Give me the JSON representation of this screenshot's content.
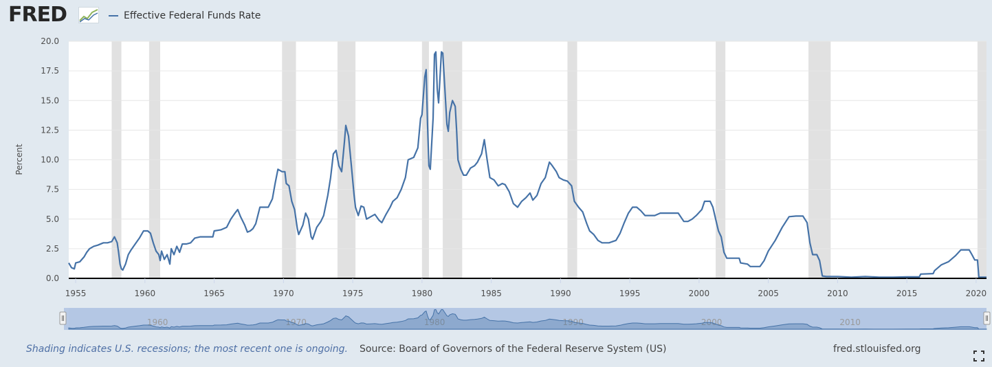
{
  "header": {
    "logo_text": "FRED",
    "legend_label": "Effective Federal Funds Rate",
    "series_color": "#4572a7"
  },
  "footer": {
    "recession_note": "Shading indicates U.S. recessions; the most recent one is ongoing.",
    "source": "Source: Board of Governors of the Federal Reserve System (US)",
    "site": "fred.stlouisfed.org"
  },
  "chart_data": {
    "type": "line",
    "title": "",
    "xlabel": "",
    "ylabel": "Percent",
    "xlim": [
      1954.5,
      2020.75
    ],
    "ylim": [
      0,
      20
    ],
    "y_ticks": [
      "0.0",
      "2.5",
      "5.0",
      "7.5",
      "10.0",
      "12.5",
      "15.0",
      "17.5",
      "20.0"
    ],
    "x_ticks": [
      "1955",
      "1960",
      "1965",
      "1970",
      "1975",
      "1980",
      "1985",
      "1990",
      "1995",
      "2000",
      "2005",
      "2010",
      "2015",
      "2020"
    ],
    "navigator_labels": [
      "1960",
      "1970",
      "1980",
      "1990",
      "2000",
      "2010"
    ],
    "grid": "horizontal",
    "recessions": [
      [
        1957.6,
        1958.3
      ],
      [
        1960.3,
        1961.1
      ],
      [
        1969.9,
        1970.9
      ],
      [
        1973.9,
        1975.2
      ],
      [
        1980.0,
        1980.5
      ],
      [
        1981.5,
        1982.9
      ],
      [
        1990.5,
        1991.2
      ],
      [
        2001.2,
        2001.9
      ],
      [
        2007.9,
        2009.5
      ],
      [
        2020.1,
        2020.75
      ]
    ],
    "series": [
      {
        "name": "Effective Federal Funds Rate",
        "color": "#4572a7",
        "points": [
          [
            1954.5,
            1.3
          ],
          [
            1954.7,
            0.9
          ],
          [
            1954.9,
            0.8
          ],
          [
            1955.0,
            1.3
          ],
          [
            1955.3,
            1.4
          ],
          [
            1955.6,
            1.8
          ],
          [
            1955.8,
            2.2
          ],
          [
            1956.0,
            2.5
          ],
          [
            1956.3,
            2.7
          ],
          [
            1956.6,
            2.8
          ],
          [
            1957.0,
            3.0
          ],
          [
            1957.3,
            3.0
          ],
          [
            1957.6,
            3.1
          ],
          [
            1957.8,
            3.5
          ],
          [
            1958.0,
            3.0
          ],
          [
            1958.1,
            2.2
          ],
          [
            1958.2,
            1.2
          ],
          [
            1958.3,
            0.8
          ],
          [
            1958.4,
            0.7
          ],
          [
            1958.6,
            1.2
          ],
          [
            1958.8,
            2.0
          ],
          [
            1959.0,
            2.4
          ],
          [
            1959.3,
            2.9
          ],
          [
            1959.6,
            3.4
          ],
          [
            1959.9,
            4.0
          ],
          [
            1960.2,
            4.0
          ],
          [
            1960.4,
            3.8
          ],
          [
            1960.6,
            3.0
          ],
          [
            1960.8,
            2.3
          ],
          [
            1961.0,
            2.0
          ],
          [
            1961.1,
            1.5
          ],
          [
            1961.2,
            2.3
          ],
          [
            1961.4,
            1.6
          ],
          [
            1961.6,
            2.0
          ],
          [
            1961.8,
            1.2
          ],
          [
            1961.9,
            2.5
          ],
          [
            1962.1,
            2.0
          ],
          [
            1962.3,
            2.7
          ],
          [
            1962.5,
            2.2
          ],
          [
            1962.7,
            2.9
          ],
          [
            1963.0,
            2.9
          ],
          [
            1963.3,
            3.0
          ],
          [
            1963.6,
            3.4
          ],
          [
            1964.0,
            3.5
          ],
          [
            1964.5,
            3.5
          ],
          [
            1964.9,
            3.5
          ],
          [
            1965.0,
            4.0
          ],
          [
            1965.5,
            4.1
          ],
          [
            1965.9,
            4.3
          ],
          [
            1966.2,
            5.0
          ],
          [
            1966.5,
            5.5
          ],
          [
            1966.7,
            5.8
          ],
          [
            1966.9,
            5.2
          ],
          [
            1967.2,
            4.5
          ],
          [
            1967.4,
            3.9
          ],
          [
            1967.6,
            4.0
          ],
          [
            1967.8,
            4.2
          ],
          [
            1968.0,
            4.6
          ],
          [
            1968.3,
            6.0
          ],
          [
            1968.6,
            6.0
          ],
          [
            1968.9,
            6.0
          ],
          [
            1969.2,
            6.7
          ],
          [
            1969.4,
            8.0
          ],
          [
            1969.6,
            9.2
          ],
          [
            1969.9,
            9.0
          ],
          [
            1970.1,
            9.0
          ],
          [
            1970.2,
            8.0
          ],
          [
            1970.4,
            7.8
          ],
          [
            1970.6,
            6.5
          ],
          [
            1970.8,
            5.8
          ],
          [
            1971.0,
            4.2
          ],
          [
            1971.1,
            3.7
          ],
          [
            1971.4,
            4.5
          ],
          [
            1971.6,
            5.5
          ],
          [
            1971.8,
            5.0
          ],
          [
            1972.0,
            3.5
          ],
          [
            1972.1,
            3.3
          ],
          [
            1972.4,
            4.3
          ],
          [
            1972.7,
            4.8
          ],
          [
            1972.9,
            5.3
          ],
          [
            1973.2,
            7.0
          ],
          [
            1973.4,
            8.5
          ],
          [
            1973.6,
            10.5
          ],
          [
            1973.8,
            10.8
          ],
          [
            1974.0,
            9.5
          ],
          [
            1974.2,
            9.0
          ],
          [
            1974.4,
            11.5
          ],
          [
            1974.5,
            12.9
          ],
          [
            1974.7,
            12.0
          ],
          [
            1974.9,
            9.5
          ],
          [
            1975.1,
            7.0
          ],
          [
            1975.2,
            6.0
          ],
          [
            1975.4,
            5.3
          ],
          [
            1975.6,
            6.1
          ],
          [
            1975.8,
            6.0
          ],
          [
            1976.0,
            5.0
          ],
          [
            1976.3,
            5.2
          ],
          [
            1976.6,
            5.4
          ],
          [
            1976.9,
            4.9
          ],
          [
            1977.1,
            4.7
          ],
          [
            1977.4,
            5.4
          ],
          [
            1977.7,
            6.0
          ],
          [
            1977.9,
            6.5
          ],
          [
            1978.2,
            6.8
          ],
          [
            1978.5,
            7.5
          ],
          [
            1978.8,
            8.5
          ],
          [
            1979.0,
            10.0
          ],
          [
            1979.4,
            10.2
          ],
          [
            1979.7,
            11.0
          ],
          [
            1979.9,
            13.5
          ],
          [
            1980.0,
            13.8
          ],
          [
            1980.2,
            17.0
          ],
          [
            1980.3,
            17.6
          ],
          [
            1980.4,
            13.0
          ],
          [
            1980.5,
            9.5
          ],
          [
            1980.6,
            9.2
          ],
          [
            1980.8,
            13.5
          ],
          [
            1980.9,
            18.9
          ],
          [
            1981.0,
            19.1
          ],
          [
            1981.1,
            16.0
          ],
          [
            1981.2,
            14.8
          ],
          [
            1981.4,
            19.1
          ],
          [
            1981.5,
            19.0
          ],
          [
            1981.7,
            15.0
          ],
          [
            1981.8,
            13.0
          ],
          [
            1981.9,
            12.4
          ],
          [
            1982.0,
            14.0
          ],
          [
            1982.2,
            15.0
          ],
          [
            1982.4,
            14.5
          ],
          [
            1982.5,
            12.5
          ],
          [
            1982.6,
            10.0
          ],
          [
            1982.8,
            9.2
          ],
          [
            1983.0,
            8.7
          ],
          [
            1983.2,
            8.7
          ],
          [
            1983.5,
            9.3
          ],
          [
            1983.8,
            9.5
          ],
          [
            1984.0,
            9.8
          ],
          [
            1984.3,
            10.5
          ],
          [
            1984.5,
            11.7
          ],
          [
            1984.7,
            10.0
          ],
          [
            1984.9,
            8.5
          ],
          [
            1985.2,
            8.3
          ],
          [
            1985.5,
            7.8
          ],
          [
            1985.8,
            8.0
          ],
          [
            1986.0,
            7.9
          ],
          [
            1986.3,
            7.3
          ],
          [
            1986.6,
            6.3
          ],
          [
            1986.9,
            6.0
          ],
          [
            1987.2,
            6.5
          ],
          [
            1987.5,
            6.8
          ],
          [
            1987.8,
            7.2
          ],
          [
            1988.0,
            6.6
          ],
          [
            1988.3,
            7.0
          ],
          [
            1988.6,
            8.0
          ],
          [
            1988.9,
            8.5
          ],
          [
            1989.2,
            9.8
          ],
          [
            1989.4,
            9.5
          ],
          [
            1989.7,
            9.0
          ],
          [
            1989.9,
            8.5
          ],
          [
            1990.2,
            8.3
          ],
          [
            1990.5,
            8.2
          ],
          [
            1990.8,
            7.8
          ],
          [
            1991.0,
            6.5
          ],
          [
            1991.3,
            6.0
          ],
          [
            1991.6,
            5.6
          ],
          [
            1991.9,
            4.6
          ],
          [
            1992.1,
            4.0
          ],
          [
            1992.4,
            3.7
          ],
          [
            1992.7,
            3.2
          ],
          [
            1993.0,
            3.0
          ],
          [
            1993.5,
            3.0
          ],
          [
            1994.0,
            3.2
          ],
          [
            1994.3,
            3.8
          ],
          [
            1994.6,
            4.7
          ],
          [
            1994.9,
            5.5
          ],
          [
            1995.2,
            6.0
          ],
          [
            1995.5,
            6.0
          ],
          [
            1995.8,
            5.7
          ],
          [
            1996.1,
            5.3
          ],
          [
            1996.5,
            5.3
          ],
          [
            1996.8,
            5.3
          ],
          [
            1997.2,
            5.5
          ],
          [
            1997.6,
            5.5
          ],
          [
            1998.0,
            5.5
          ],
          [
            1998.5,
            5.5
          ],
          [
            1998.9,
            4.8
          ],
          [
            1999.2,
            4.8
          ],
          [
            1999.5,
            5.0
          ],
          [
            1999.8,
            5.3
          ],
          [
            2000.2,
            5.8
          ],
          [
            2000.4,
            6.5
          ],
          [
            2000.8,
            6.5
          ],
          [
            2001.0,
            6.0
          ],
          [
            2001.2,
            5.0
          ],
          [
            2001.4,
            4.0
          ],
          [
            2001.6,
            3.5
          ],
          [
            2001.8,
            2.2
          ],
          [
            2002.0,
            1.7
          ],
          [
            2002.5,
            1.7
          ],
          [
            2002.9,
            1.7
          ],
          [
            2003.0,
            1.3
          ],
          [
            2003.5,
            1.2
          ],
          [
            2003.7,
            1.0
          ],
          [
            2004.0,
            1.0
          ],
          [
            2004.4,
            1.0
          ],
          [
            2004.7,
            1.5
          ],
          [
            2005.0,
            2.3
          ],
          [
            2005.5,
            3.2
          ],
          [
            2006.0,
            4.3
          ],
          [
            2006.5,
            5.2
          ],
          [
            2007.0,
            5.25
          ],
          [
            2007.5,
            5.25
          ],
          [
            2007.8,
            4.7
          ],
          [
            2008.0,
            3.0
          ],
          [
            2008.2,
            2.0
          ],
          [
            2008.5,
            2.0
          ],
          [
            2008.7,
            1.5
          ],
          [
            2008.9,
            0.2
          ],
          [
            2009.2,
            0.15
          ],
          [
            2010.0,
            0.15
          ],
          [
            2011.0,
            0.1
          ],
          [
            2012.0,
            0.15
          ],
          [
            2013.0,
            0.1
          ],
          [
            2014.0,
            0.1
          ],
          [
            2015.0,
            0.12
          ],
          [
            2015.9,
            0.12
          ],
          [
            2016.0,
            0.36
          ],
          [
            2016.9,
            0.4
          ],
          [
            2017.0,
            0.65
          ],
          [
            2017.5,
            1.15
          ],
          [
            2018.0,
            1.4
          ],
          [
            2018.5,
            1.9
          ],
          [
            2018.9,
            2.4
          ],
          [
            2019.5,
            2.4
          ],
          [
            2019.7,
            2.0
          ],
          [
            2019.9,
            1.55
          ],
          [
            2020.1,
            1.55
          ],
          [
            2020.2,
            0.1
          ],
          [
            2020.75,
            0.1
          ]
        ]
      }
    ]
  }
}
